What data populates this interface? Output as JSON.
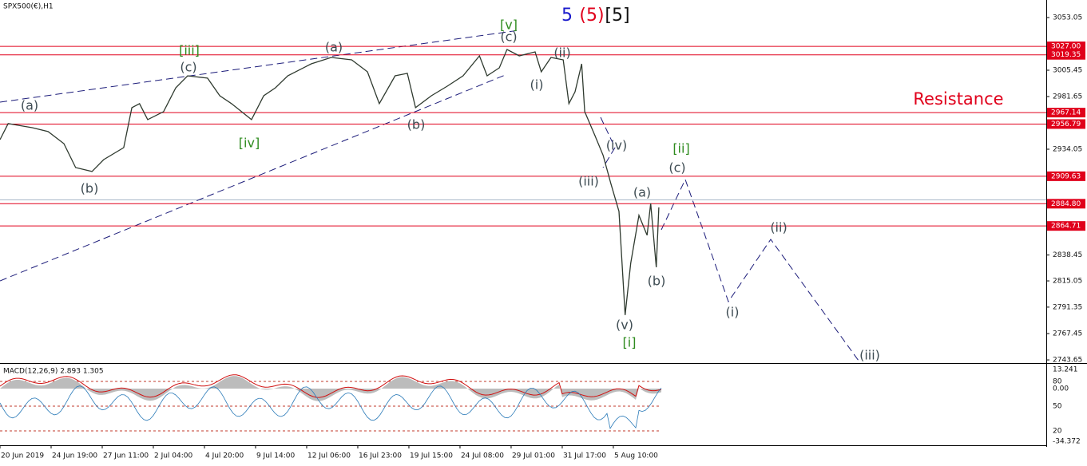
{
  "chart_data": {
    "type": "line",
    "title": "SPX500(€),H1",
    "color": "#2f3a2f",
    "ylim": [
      2740.8,
      3068.9
    ],
    "yticks": [
      3053.05,
      3005.45,
      2981.65,
      2934.05,
      2838.45,
      2815.05,
      2791.35,
      2767.45,
      2743.65
    ],
    "levels": [
      {
        "value": 3027,
        "label": "3027.00"
      },
      3019.35,
      2967.14,
      2956.79,
      2909.63,
      {
        "value": 2884.8,
        "label": "2884.80"
      },
      2864.71
    ],
    "level_color": "#e0001b",
    "xlim": [
      0,
      20.47
    ],
    "xticks": [
      {
        "value": 0,
        "label": "20 Jun 2019"
      },
      {
        "value": 1,
        "label": "24 Jun 19:00"
      },
      {
        "value": 2,
        "label": "27 Jun 11:00"
      },
      {
        "value": 3,
        "label": "2 Jul 04:00"
      },
      {
        "value": 4,
        "label": "4 Jul 20:00"
      },
      {
        "value": 5,
        "label": "9 Jul 14:00"
      },
      {
        "value": 6,
        "label": "12 Jul 06:00"
      },
      {
        "value": 7,
        "label": "16 Jul 23:00"
      },
      {
        "value": 8,
        "label": "19 Jul 15:00"
      },
      {
        "value": 9,
        "label": "24 Jul 08:00"
      },
      {
        "value": 10,
        "label": "29 Jul 01:00"
      },
      {
        "value": 11,
        "label": "31 Jul 17:00"
      },
      {
        "value": 12,
        "label": "5 Aug 10:00"
      }
    ],
    "x": [
      0,
      0.16,
      0.63,
      0.94,
      1.25,
      1.48,
      1.8,
      2.03,
      2.42,
      2.58,
      2.73,
      2.89,
      3.2,
      3.44,
      3.67,
      4.06,
      4.3,
      4.53,
      4.92,
      5.16,
      5.39,
      5.63,
      6.09,
      6.48,
      6.88,
      7.19,
      7.42,
      7.73,
      7.97,
      8.13,
      8.44,
      8.75,
      9.06,
      9.38,
      9.53,
      9.77,
      9.92,
      10.16,
      10.47,
      10.59,
      10.78,
      11.02,
      11.13,
      11.25,
      11.38,
      11.44,
      11.64,
      11.8,
      11.95,
      12.11,
      12.23,
      12.34,
      12.5,
      12.66,
      12.73,
      12.84,
      12.89
    ],
    "values": [
      2942.7,
      2957.2,
      2953.5,
      2950.0,
      2939.1,
      2917.5,
      2913.9,
      2924.7,
      2935.5,
      2971.6,
      2975.2,
      2960.8,
      2968.0,
      2989.6,
      3000.4,
      2998.3,
      2982.4,
      2975.2,
      2960.8,
      2982.4,
      2989.6,
      3000.4,
      3011.2,
      3017.0,
      3014.8,
      3004.0,
      2975.2,
      3000.4,
      3002.6,
      2971.6,
      2982.4,
      2991.0,
      3000.4,
      3018.4,
      3000.4,
      3007.6,
      3024.2,
      3018.4,
      3022.0,
      3004.0,
      3017.0,
      3014.8,
      2975.2,
      2986.0,
      3011.2,
      2968.0,
      2946.4,
      2928.4,
      2903.1,
      2877.9,
      2784.2,
      2831.0,
      2874.3,
      2856.3,
      2885.1,
      2827.4,
      2881.5
    ],
    "headline": [
      {
        "text": "5",
        "color": "#1a1acc"
      },
      {
        "text": "(5)",
        "color": "#e0001b"
      },
      {
        "text": "[5]",
        "color": "#111111"
      }
    ],
    "resistance": {
      "text": "Resistance",
      "color": "#e0001b"
    },
    "annotations": [
      {
        "text": "(a)",
        "color": "#3d4b52"
      },
      {
        "text": "(b)",
        "color": "#3d4b52"
      },
      {
        "text": "(c)",
        "color": "#3d4b52"
      },
      {
        "text": "[iii]",
        "color": "#2e8b1e"
      },
      {
        "text": "[iv]",
        "color": "#2e8b1e"
      },
      {
        "text": "(a)",
        "color": "#3d4b52"
      },
      {
        "text": "(b)",
        "color": "#3d4b52"
      },
      {
        "text": "[v]",
        "color": "#2e8b1e"
      },
      {
        "text": "(c)",
        "color": "#3d4b52"
      },
      {
        "text": "(ii)",
        "color": "#3d4b52"
      },
      {
        "text": "(i)",
        "color": "#3d4b52"
      },
      {
        "text": "(iv)",
        "color": "#3d4b52"
      },
      {
        "text": "(iii)",
        "color": "#3d4b52"
      },
      {
        "text": "(a)",
        "color": "#3d4b52"
      },
      {
        "text": "(c)",
        "color": "#3d4b52"
      },
      {
        "text": "[ii]",
        "color": "#2e8b1e"
      },
      {
        "text": "(b)",
        "color": "#3d4b52"
      },
      {
        "text": "(v)",
        "color": "#3d4b52"
      },
      {
        "text": "[i]",
        "color": "#2e8b1e"
      },
      {
        "text": "(i)",
        "color": "#3d4b52"
      },
      {
        "text": "(ii)",
        "color": "#3d4b52"
      },
      {
        "text": "(iii)",
        "color": "#3d4b52"
      }
    ],
    "macd": {
      "label": "MACD(12,26,9) 2.893 1.305",
      "tick_labels": [
        "13.241",
        "80",
        "0.00",
        "50",
        "20",
        "-34.372"
      ]
    }
  }
}
